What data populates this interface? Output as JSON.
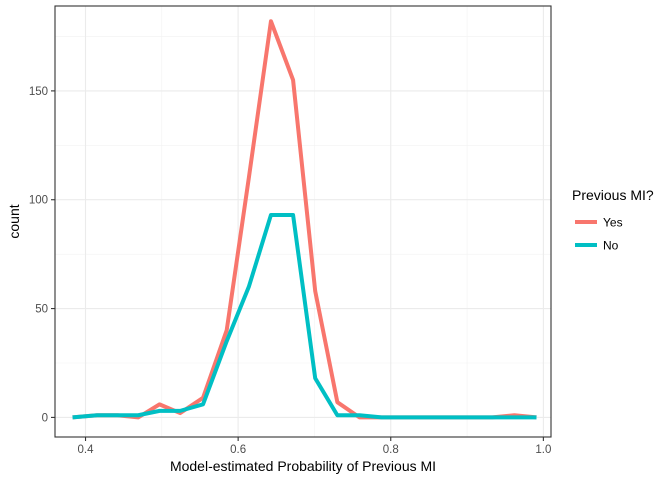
{
  "chart_data": {
    "type": "line",
    "xlabel": "Model-estimated Probability of Previous MI",
    "ylabel": "count",
    "xlim": [
      0.36,
      1.01
    ],
    "ylim": [
      -9,
      189
    ],
    "x_ticks": [
      0.4,
      0.6,
      0.8,
      1.0
    ],
    "x_tick_labels": [
      "0.4",
      "0.6",
      "0.8",
      "1.0"
    ],
    "y_ticks": [
      0,
      50,
      100,
      150
    ],
    "y_tick_labels": [
      "0",
      "50",
      "100",
      "150"
    ],
    "grid": true,
    "legend": {
      "title": "Previous MI?",
      "position": "right"
    },
    "series": [
      {
        "name": "Yes",
        "color": "#F8766D",
        "x": [
          0.383,
          0.415,
          0.442,
          0.469,
          0.497,
          0.524,
          0.554,
          0.585,
          0.614,
          0.643,
          0.672,
          0.701,
          0.73,
          0.759,
          0.788,
          0.817,
          0.846,
          0.875,
          0.904,
          0.933,
          0.962,
          0.991
        ],
        "y": [
          0,
          1,
          1,
          0,
          6,
          2,
          9,
          40,
          110,
          182,
          155,
          58,
          7,
          0,
          0,
          0,
          0,
          0,
          0,
          0,
          1,
          0
        ]
      },
      {
        "name": "No",
        "color": "#00BFC4",
        "x": [
          0.383,
          0.415,
          0.442,
          0.469,
          0.497,
          0.524,
          0.554,
          0.585,
          0.614,
          0.643,
          0.672,
          0.701,
          0.73,
          0.759,
          0.788,
          0.817,
          0.846,
          0.875,
          0.904,
          0.933,
          0.962,
          0.991
        ],
        "y": [
          0,
          1,
          1,
          1,
          3,
          3,
          6,
          35,
          60,
          93,
          93,
          18,
          1,
          1,
          0,
          0,
          0,
          0,
          0,
          0,
          0,
          0
        ]
      }
    ]
  }
}
